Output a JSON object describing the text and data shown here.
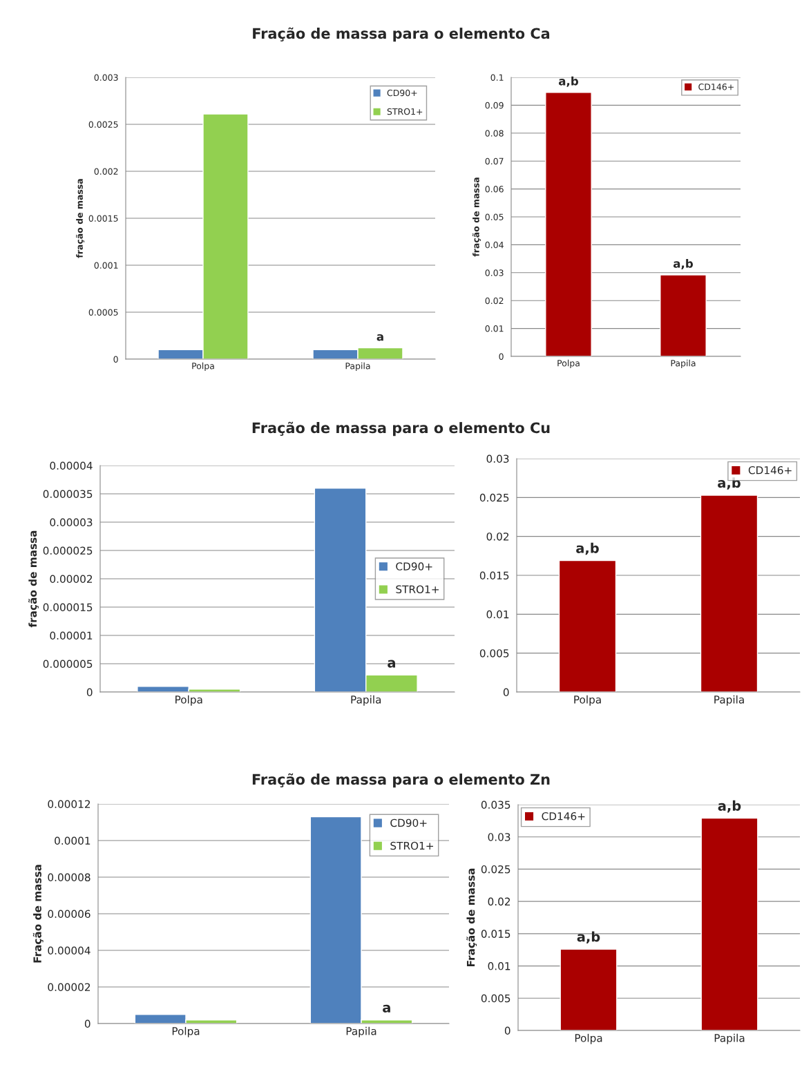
{
  "chart_data": [
    {
      "type": "bar",
      "title": "Fração de massa para o elemento Ca",
      "ylabel": "fração de massa",
      "categories": [
        "Polpa",
        "Papila"
      ],
      "series": [
        {
          "name": "CD90+",
          "color": "#4f81bd",
          "values": [
            0.0001,
            0.0001
          ]
        },
        {
          "name": "STRO1+",
          "color": "#92d050",
          "values": [
            0.00261,
            0.00012
          ]
        }
      ],
      "ylim": [
        0,
        0.003
      ],
      "yticks": [
        0,
        0.0005,
        0.001,
        0.0015,
        0.002,
        0.0025,
        0.003
      ],
      "grid": "y",
      "legend": "top right",
      "annotations": [
        {
          "text": "a",
          "x": "Papila",
          "y": 0.00012
        }
      ]
    },
    {
      "type": "bar",
      "ylabel": "fração de massa",
      "categories": [
        "Polpa",
        "Papila"
      ],
      "series": [
        {
          "name": "CD146+",
          "color": "#aa0000",
          "values": [
            0.0946,
            0.0292
          ]
        }
      ],
      "ylim": [
        0,
        0.1
      ],
      "yticks": [
        0,
        0.01,
        0.02,
        0.03,
        0.04,
        0.05,
        0.06,
        0.07,
        0.08,
        0.09,
        0.1
      ],
      "grid": "y",
      "legend": "top right",
      "annotations": [
        {
          "text": "a,b",
          "x": "Polpa",
          "y": 0.0946
        },
        {
          "text": "a,b",
          "x": "Papila",
          "y": 0.0292
        }
      ]
    },
    {
      "type": "bar",
      "title": "Fração de massa para o elemento Cu",
      "ylabel": "fração de massa",
      "categories": [
        "Polpa",
        "Papila"
      ],
      "series": [
        {
          "name": "CD90+",
          "color": "#4f81bd",
          "values": [
            1e-06,
            3.6e-05
          ]
        },
        {
          "name": "STRO1+",
          "color": "#92d050",
          "values": [
            5e-07,
            3e-06
          ]
        }
      ],
      "ylim": [
        0,
        4e-05
      ],
      "yticks": [
        {
          "value": 0,
          "label": "0"
        },
        {
          "value": 5e-06,
          "label": "0.000005"
        },
        {
          "value": 1e-05,
          "label": "0.00001"
        },
        {
          "value": 1.5e-05,
          "label": "0.000015"
        },
        {
          "value": 2e-05,
          "label": "0.00002"
        },
        {
          "value": 2.5e-05,
          "label": "0.000025"
        },
        {
          "value": 3e-05,
          "label": "0.00003"
        },
        {
          "value": 3.5e-05,
          "label": "0.000035"
        },
        {
          "value": 4e-05,
          "label": "0.00004"
        }
      ],
      "grid": "y",
      "legend": "right",
      "annotations": [
        {
          "text": "a",
          "x": "Papila",
          "y": 3e-06
        }
      ]
    },
    {
      "type": "bar",
      "categories": [
        "Polpa",
        "Papila"
      ],
      "series": [
        {
          "name": "CD146+",
          "color": "#aa0000",
          "values": [
            0.0169,
            0.0253
          ]
        }
      ],
      "ylim": [
        0,
        0.03
      ],
      "yticks": [
        0,
        0.005,
        0.01,
        0.015,
        0.02,
        0.025,
        0.03
      ],
      "grid": "y",
      "legend": "top right",
      "annotations": [
        {
          "text": "a,b",
          "x": "Polpa",
          "y": 0.0169
        },
        {
          "text": "a,b",
          "x": "Papila",
          "y": 0.0253
        }
      ]
    },
    {
      "type": "bar",
      "title": "Fração de massa para o elemento Zn",
      "ylabel": "Fração de massa",
      "categories": [
        "Polpa",
        "Papila"
      ],
      "series": [
        {
          "name": "CD90+",
          "color": "#4f81bd",
          "values": [
            5e-06,
            0.000113
          ]
        },
        {
          "name": "STRO1+",
          "color": "#92d050",
          "values": [
            2e-06,
            2e-06
          ]
        }
      ],
      "ylim": [
        0,
        0.00012
      ],
      "yticks": [
        {
          "value": 0,
          "label": "0"
        },
        {
          "value": 2e-05,
          "label": "0.00002"
        },
        {
          "value": 4e-05,
          "label": "0.00004"
        },
        {
          "value": 6e-05,
          "label": "0.00006"
        },
        {
          "value": 8e-05,
          "label": "0.00008"
        },
        {
          "value": 0.0001,
          "label": "0.0001"
        },
        {
          "value": 0.00012,
          "label": "0.00012"
        }
      ],
      "grid": "y",
      "legend": "top right",
      "annotations": [
        {
          "text": "a",
          "x": "Papila",
          "y": 2e-06
        }
      ]
    },
    {
      "type": "bar",
      "ylabel": "Fração de massa",
      "categories": [
        "Polpa",
        "Papila"
      ],
      "series": [
        {
          "name": "CD146+",
          "color": "#aa0000",
          "values": [
            0.0126,
            0.0329
          ]
        }
      ],
      "ylim": [
        0,
        0.035
      ],
      "yticks": [
        0,
        0.005,
        0.01,
        0.015,
        0.02,
        0.025,
        0.03,
        0.035
      ],
      "grid": "y",
      "legend": "top left",
      "annotations": [
        {
          "text": "a,b",
          "x": "Polpa",
          "y": 0.0126
        },
        {
          "text": "a,b",
          "x": "Papila",
          "y": 0.0329
        }
      ]
    }
  ]
}
